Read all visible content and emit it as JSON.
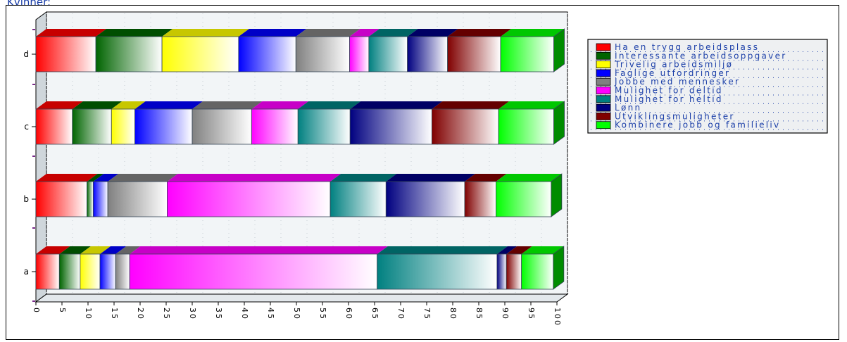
{
  "page": {
    "title": "Kvinner:"
  },
  "chart_data": {
    "type": "bar",
    "orientation": "horizontal",
    "stacked": true,
    "percent_stacked": true,
    "three_d": true,
    "title": "Kvinner:",
    "xlabel": "",
    "ylabel": "",
    "xlim": [
      0,
      100
    ],
    "x_ticks": [
      "0",
      "5",
      "10",
      "15",
      "20",
      "25",
      "30",
      "35",
      "40",
      "45",
      "50",
      "55",
      "60",
      "65",
      "70",
      "75",
      "80",
      "85",
      "90",
      "95",
      "100"
    ],
    "categories": [
      "a",
      "b",
      "c",
      "d"
    ],
    "legend_position": "right",
    "series": [
      {
        "name": "Ha en trygg arbeidsplass",
        "color": "#ff0000",
        "values": [
          4.5,
          9.8,
          7.0,
          11.5
        ]
      },
      {
        "name": "Interessante arbeidsoppgaver",
        "color": "#006400",
        "values": [
          4.0,
          1.2,
          7.5,
          12.7
        ]
      },
      {
        "name": "Trivelig arbeidsmiljø",
        "color": "#ffff00",
        "values": [
          3.8,
          0.0,
          4.5,
          14.7
        ]
      },
      {
        "name": "Faglige utfordringer",
        "color": "#0000ff",
        "values": [
          3.0,
          2.8,
          11.0,
          11.0
        ]
      },
      {
        "name": "Jobbe med mennesker",
        "color": "#808080",
        "values": [
          2.7,
          11.4,
          11.4,
          10.3
        ]
      },
      {
        "name": "Mulighet for deltid",
        "color": "#ff00ff",
        "values": [
          47.5,
          31.3,
          8.9,
          3.7
        ]
      },
      {
        "name": "Mulighet for heltid",
        "color": "#008080",
        "values": [
          23.0,
          10.7,
          10.0,
          7.4
        ]
      },
      {
        "name": "Lønn",
        "color": "#000080",
        "values": [
          1.8,
          15.1,
          15.7,
          7.7
        ]
      },
      {
        "name": "Utviklingsmuligheter",
        "color": "#800000",
        "values": [
          2.9,
          6.0,
          12.8,
          10.2
        ]
      },
      {
        "name": "Kombinere jobb og familieliv",
        "color": "#00ff00",
        "values": [
          6.1,
          10.6,
          10.6,
          10.2
        ]
      }
    ]
  }
}
